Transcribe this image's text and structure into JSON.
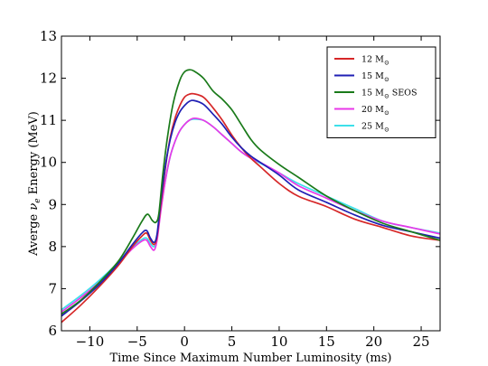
{
  "chart_data": {
    "type": "line",
    "title": "",
    "xlabel": "Time Since Maximum Number Luminosity (ms)",
    "ylabel": {
      "prefix": "Averge ",
      "symbol": "ν",
      "subscript": "e",
      "suffix": " Energy (MeV)"
    },
    "xlim": [
      -13,
      27
    ],
    "ylim": [
      6,
      13
    ],
    "xticks": [
      {
        "value": -10,
        "label": "−10"
      },
      {
        "value": -5,
        "label": "−5"
      },
      {
        "value": 0,
        "label": "0"
      },
      {
        "value": 5,
        "label": "5"
      },
      {
        "value": 10,
        "label": "10"
      },
      {
        "value": 15,
        "label": "15"
      },
      {
        "value": 20,
        "label": "20"
      },
      {
        "value": 25,
        "label": "25"
      }
    ],
    "yticks": [
      {
        "value": 6,
        "label": "6"
      },
      {
        "value": 7,
        "label": "7"
      },
      {
        "value": 8,
        "label": "8"
      },
      {
        "value": 9,
        "label": "9"
      },
      {
        "value": 10,
        "label": "10"
      },
      {
        "value": 11,
        "label": "11"
      },
      {
        "value": 12,
        "label": "12"
      },
      {
        "value": 13,
        "label": "13"
      }
    ],
    "grid": false,
    "legend": "top-right",
    "series": [
      {
        "name": "12 M",
        "name_subscript": "⊙",
        "color": "#d62728",
        "points": [
          [
            -13,
            6.2
          ],
          [
            -11,
            6.6
          ],
          [
            -9,
            7.05
          ],
          [
            -7,
            7.55
          ],
          [
            -5.5,
            8.0
          ],
          [
            -4.5,
            8.25
          ],
          [
            -4,
            8.32
          ],
          [
            -3.6,
            8.15
          ],
          [
            -3.2,
            8.05
          ],
          [
            -2.9,
            8.25
          ],
          [
            -2.5,
            9.0
          ],
          [
            -2,
            9.9
          ],
          [
            -1.5,
            10.6
          ],
          [
            -1,
            11.05
          ],
          [
            -0.5,
            11.35
          ],
          [
            0,
            11.55
          ],
          [
            0.5,
            11.62
          ],
          [
            1,
            11.63
          ],
          [
            2,
            11.55
          ],
          [
            3,
            11.3
          ],
          [
            4,
            11.0
          ],
          [
            5,
            10.65
          ],
          [
            6,
            10.35
          ],
          [
            7,
            10.1
          ],
          [
            8,
            9.9
          ],
          [
            10,
            9.5
          ],
          [
            12,
            9.2
          ],
          [
            15,
            8.95
          ],
          [
            18,
            8.65
          ],
          [
            21,
            8.45
          ],
          [
            24,
            8.25
          ],
          [
            27,
            8.15
          ]
        ]
      },
      {
        "name": "15 M",
        "name_subscript": "⊙",
        "color": "#1f1fb4",
        "points": [
          [
            -13,
            6.35
          ],
          [
            -11,
            6.7
          ],
          [
            -9,
            7.1
          ],
          [
            -7,
            7.6
          ],
          [
            -5.5,
            8.05
          ],
          [
            -4.5,
            8.32
          ],
          [
            -4,
            8.38
          ],
          [
            -3.6,
            8.2
          ],
          [
            -3.2,
            8.1
          ],
          [
            -2.9,
            8.3
          ],
          [
            -2.5,
            9.1
          ],
          [
            -2,
            9.95
          ],
          [
            -1.5,
            10.55
          ],
          [
            -1,
            10.95
          ],
          [
            -0.5,
            11.2
          ],
          [
            0,
            11.35
          ],
          [
            0.5,
            11.45
          ],
          [
            1,
            11.47
          ],
          [
            2,
            11.38
          ],
          [
            3,
            11.15
          ],
          [
            4,
            10.9
          ],
          [
            5,
            10.6
          ],
          [
            6,
            10.35
          ],
          [
            7,
            10.15
          ],
          [
            8,
            10.0
          ],
          [
            10,
            9.7
          ],
          [
            12,
            9.35
          ],
          [
            15,
            9.05
          ],
          [
            18,
            8.75
          ],
          [
            21,
            8.5
          ],
          [
            24,
            8.35
          ],
          [
            27,
            8.2
          ]
        ]
      },
      {
        "name": "15 M",
        "name_subscript": "⊙",
        "name_suffix": " SEOS",
        "color": "#1a7a1a",
        "points": [
          [
            -13,
            6.4
          ],
          [
            -11,
            6.72
          ],
          [
            -9,
            7.15
          ],
          [
            -7,
            7.65
          ],
          [
            -5.5,
            8.2
          ],
          [
            -4.5,
            8.6
          ],
          [
            -3.9,
            8.77
          ],
          [
            -3.4,
            8.62
          ],
          [
            -3.0,
            8.58
          ],
          [
            -2.7,
            8.8
          ],
          [
            -2.3,
            9.7
          ],
          [
            -1.8,
            10.6
          ],
          [
            -1.2,
            11.4
          ],
          [
            -0.5,
            11.95
          ],
          [
            0,
            12.15
          ],
          [
            0.5,
            12.2
          ],
          [
            1,
            12.17
          ],
          [
            2,
            12.0
          ],
          [
            3,
            11.7
          ],
          [
            4,
            11.5
          ],
          [
            5,
            11.25
          ],
          [
            6,
            10.9
          ],
          [
            7,
            10.55
          ],
          [
            8,
            10.3
          ],
          [
            10,
            9.95
          ],
          [
            12,
            9.65
          ],
          [
            15,
            9.2
          ],
          [
            18,
            8.85
          ],
          [
            21,
            8.55
          ],
          [
            24,
            8.35
          ],
          [
            27,
            8.15
          ]
        ]
      },
      {
        "name": "20 M",
        "name_subscript": "⊙",
        "color": "#e838e8",
        "points": [
          [
            -13,
            6.45
          ],
          [
            -11,
            6.78
          ],
          [
            -9,
            7.15
          ],
          [
            -7,
            7.6
          ],
          [
            -5.5,
            7.95
          ],
          [
            -4.5,
            8.13
          ],
          [
            -4,
            8.15
          ],
          [
            -3.6,
            8.0
          ],
          [
            -3.2,
            7.92
          ],
          [
            -2.9,
            8.15
          ],
          [
            -2.5,
            8.85
          ],
          [
            -2,
            9.6
          ],
          [
            -1.5,
            10.15
          ],
          [
            -1,
            10.5
          ],
          [
            -0.5,
            10.75
          ],
          [
            0,
            10.9
          ],
          [
            0.5,
            11.0
          ],
          [
            1,
            11.05
          ],
          [
            2,
            11.0
          ],
          [
            3,
            10.85
          ],
          [
            4,
            10.65
          ],
          [
            5,
            10.45
          ],
          [
            6,
            10.25
          ],
          [
            7,
            10.1
          ],
          [
            8,
            10.0
          ],
          [
            10,
            9.75
          ],
          [
            12,
            9.45
          ],
          [
            15,
            9.15
          ],
          [
            18,
            8.85
          ],
          [
            21,
            8.6
          ],
          [
            24,
            8.45
          ],
          [
            27,
            8.3
          ]
        ]
      },
      {
        "name": "25 M",
        "name_subscript": "⊙",
        "color": "#3de0ea",
        "points": [
          [
            -13,
            6.5
          ],
          [
            -11,
            6.83
          ],
          [
            -9,
            7.2
          ],
          [
            -7,
            7.62
          ],
          [
            -5.5,
            7.98
          ],
          [
            -4.5,
            8.17
          ],
          [
            -4,
            8.2
          ],
          [
            -3.6,
            8.07
          ],
          [
            -3.2,
            8.0
          ],
          [
            -2.9,
            8.2
          ],
          [
            -2.5,
            8.9
          ],
          [
            -2,
            9.6
          ],
          [
            -1.5,
            10.15
          ],
          [
            -1,
            10.5
          ],
          [
            -0.5,
            10.75
          ],
          [
            0,
            10.9
          ],
          [
            0.5,
            11.0
          ],
          [
            1,
            11.03
          ],
          [
            2,
            11.0
          ],
          [
            3,
            10.85
          ],
          [
            4,
            10.65
          ],
          [
            5,
            10.45
          ],
          [
            6,
            10.25
          ],
          [
            7,
            10.1
          ],
          [
            8,
            9.98
          ],
          [
            10,
            9.75
          ],
          [
            12,
            9.5
          ],
          [
            15,
            9.2
          ],
          [
            18,
            8.9
          ],
          [
            21,
            8.6
          ],
          [
            24,
            8.45
          ],
          [
            27,
            8.32
          ]
        ]
      }
    ]
  }
}
